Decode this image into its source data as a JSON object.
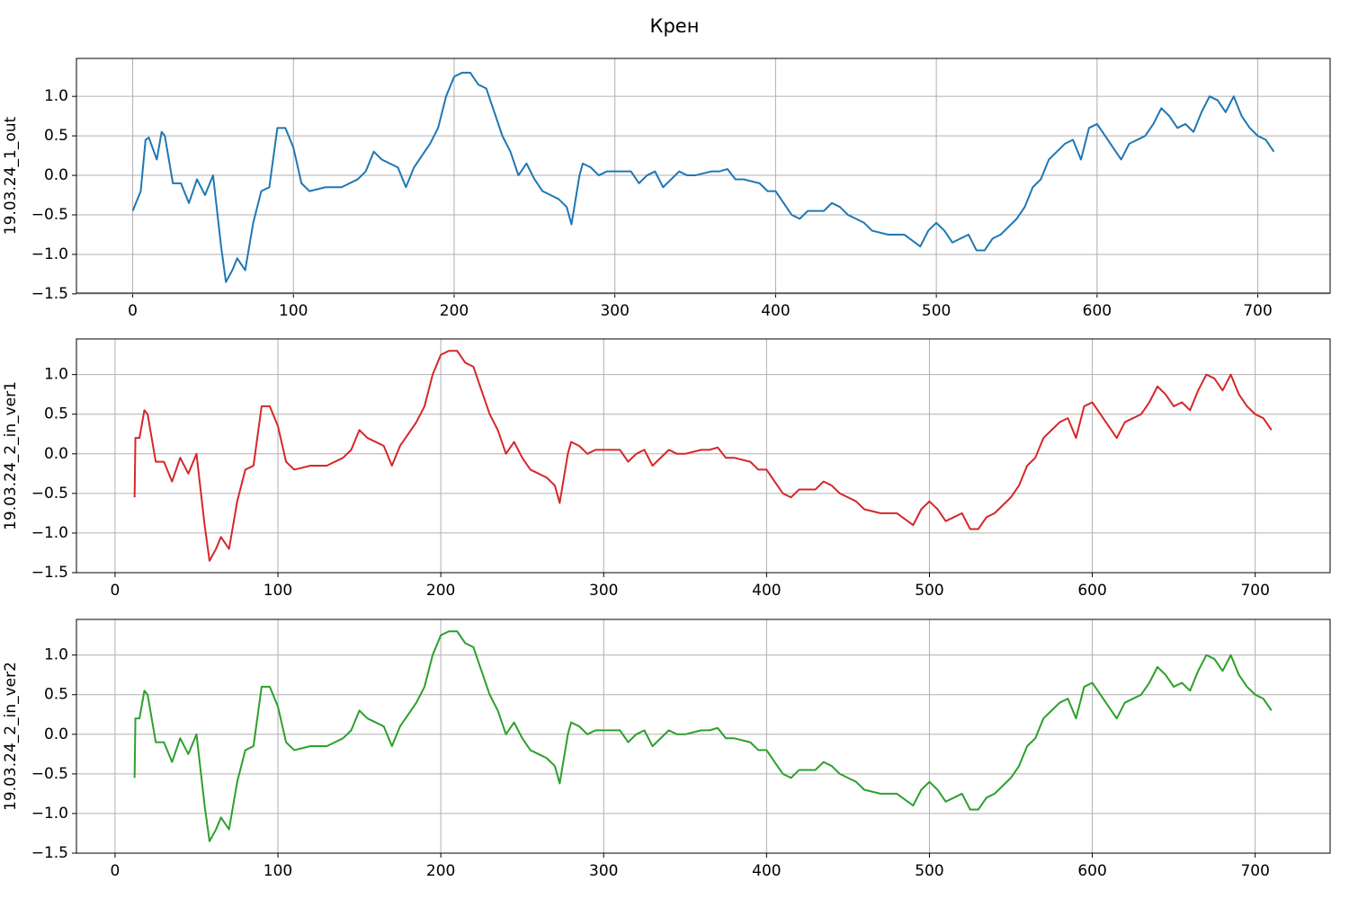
{
  "title": "Крен",
  "chart_data": [
    {
      "type": "line",
      "ylabel": "19.03.24_1_out",
      "color": "#1f77b4",
      "x": [
        0,
        5,
        8,
        10,
        15,
        18,
        20,
        25,
        30,
        35,
        40,
        45,
        50,
        55,
        58,
        62,
        65,
        70,
        75,
        80,
        85,
        90,
        95,
        100,
        105,
        110,
        120,
        130,
        140,
        145,
        150,
        155,
        160,
        165,
        170,
        175,
        180,
        185,
        190,
        195,
        200,
        205,
        210,
        215,
        220,
        225,
        230,
        235,
        240,
        245,
        250,
        255,
        260,
        265,
        270,
        273,
        278,
        280,
        285,
        290,
        295,
        300,
        310,
        315,
        320,
        325,
        330,
        340,
        345,
        350,
        360,
        365,
        370,
        375,
        380,
        390,
        395,
        400,
        405,
        410,
        415,
        420,
        430,
        435,
        440,
        445,
        450,
        455,
        460,
        470,
        480,
        490,
        495,
        500,
        505,
        510,
        515,
        520,
        525,
        530,
        535,
        540,
        550,
        555,
        560,
        565,
        570,
        575,
        580,
        585,
        590,
        595,
        600,
        605,
        610,
        615,
        620,
        630,
        635,
        640,
        645,
        650,
        655,
        660,
        665,
        670,
        675,
        680,
        685,
        690,
        695,
        700,
        705,
        710
      ],
      "values": [
        -0.45,
        -0.2,
        0.45,
        0.48,
        0.2,
        0.55,
        0.5,
        -0.1,
        -0.1,
        -0.35,
        -0.05,
        -0.25,
        0.0,
        -0.9,
        -1.35,
        -1.2,
        -1.05,
        -1.2,
        -0.6,
        -0.2,
        -0.15,
        0.6,
        0.6,
        0.35,
        -0.1,
        -0.2,
        -0.15,
        -0.15,
        -0.05,
        0.05,
        0.3,
        0.2,
        0.15,
        0.1,
        -0.15,
        0.1,
        0.25,
        0.4,
        0.6,
        1.0,
        1.25,
        1.3,
        1.3,
        1.15,
        1.1,
        0.8,
        0.5,
        0.3,
        0.0,
        0.15,
        -0.05,
        -0.2,
        -0.25,
        -0.3,
        -0.4,
        -0.62,
        0.0,
        0.15,
        0.1,
        0.0,
        0.05,
        0.05,
        0.05,
        -0.1,
        0.0,
        0.05,
        -0.15,
        0.05,
        0.0,
        0.0,
        0.05,
        0.05,
        0.08,
        -0.05,
        -0.05,
        -0.1,
        -0.2,
        -0.2,
        -0.35,
        -0.5,
        -0.55,
        -0.45,
        -0.45,
        -0.35,
        -0.4,
        -0.5,
        -0.55,
        -0.6,
        -0.7,
        -0.75,
        -0.75,
        -0.9,
        -0.7,
        -0.6,
        -0.7,
        -0.85,
        -0.8,
        -0.75,
        -0.95,
        -0.95,
        -0.8,
        -0.75,
        -0.55,
        -0.4,
        -0.15,
        -0.05,
        0.2,
        0.3,
        0.4,
        0.45,
        0.2,
        0.6,
        0.65,
        0.5,
        0.35,
        0.2,
        0.4,
        0.5,
        0.65,
        0.85,
        0.75,
        0.6,
        0.65,
        0.55,
        0.8,
        1.0,
        0.95,
        0.8,
        1.0,
        0.75,
        0.6,
        0.5,
        0.45,
        0.3
      ],
      "xlim": [
        -35,
        745
      ],
      "ylim": [
        -1.49,
        1.48
      ],
      "xticks": [
        0,
        100,
        200,
        300,
        400,
        500,
        600,
        700
      ],
      "yticks": [
        {
          "value": -1.5,
          "label": "−1.5"
        },
        {
          "value": -1.0,
          "label": "−1.0"
        },
        {
          "value": -0.5,
          "label": "−0.5"
        },
        {
          "value": 0,
          "label": "0.0"
        },
        {
          "value": 0.5,
          "label": "0.5"
        },
        {
          "value": 1.0,
          "label": "1.0"
        }
      ],
      "grid": true
    },
    {
      "type": "line",
      "ylabel": "19.03.24_2_in_ver1",
      "color": "#d62728",
      "x": [
        12,
        12.5,
        15,
        18,
        20,
        25,
        30,
        35,
        40,
        45,
        50,
        55,
        58,
        62,
        65,
        70,
        75,
        80,
        85,
        90,
        95,
        100,
        105,
        110,
        120,
        130,
        140,
        145,
        150,
        155,
        160,
        165,
        170,
        175,
        180,
        185,
        190,
        195,
        200,
        205,
        210,
        215,
        220,
        225,
        230,
        235,
        240,
        245,
        250,
        255,
        260,
        265,
        270,
        273,
        278,
        280,
        285,
        290,
        295,
        300,
        310,
        315,
        320,
        325,
        330,
        340,
        345,
        350,
        360,
        365,
        370,
        375,
        380,
        390,
        395,
        400,
        405,
        410,
        415,
        420,
        430,
        435,
        440,
        445,
        450,
        455,
        460,
        470,
        480,
        490,
        495,
        500,
        505,
        510,
        515,
        520,
        525,
        530,
        535,
        540,
        550,
        555,
        560,
        565,
        570,
        575,
        580,
        585,
        590,
        595,
        600,
        605,
        610,
        615,
        620,
        630,
        635,
        640,
        645,
        650,
        655,
        660,
        665,
        670,
        675,
        680,
        685,
        690,
        695,
        700,
        705,
        710
      ],
      "values": [
        -0.55,
        0.2,
        0.2,
        0.55,
        0.5,
        -0.1,
        -0.1,
        -0.35,
        -0.05,
        -0.25,
        0.0,
        -0.9,
        -1.35,
        -1.2,
        -1.05,
        -1.2,
        -0.6,
        -0.2,
        -0.15,
        0.6,
        0.6,
        0.35,
        -0.1,
        -0.2,
        -0.15,
        -0.15,
        -0.05,
        0.05,
        0.3,
        0.2,
        0.15,
        0.1,
        -0.15,
        0.1,
        0.25,
        0.4,
        0.6,
        1.0,
        1.25,
        1.3,
        1.3,
        1.15,
        1.1,
        0.8,
        0.5,
        0.3,
        0.0,
        0.15,
        -0.05,
        -0.2,
        -0.25,
        -0.3,
        -0.4,
        -0.62,
        0.0,
        0.15,
        0.1,
        0.0,
        0.05,
        0.05,
        0.05,
        -0.1,
        0.0,
        0.05,
        -0.15,
        0.05,
        0.0,
        0.0,
        0.05,
        0.05,
        0.08,
        -0.05,
        -0.05,
        -0.1,
        -0.2,
        -0.2,
        -0.35,
        -0.5,
        -0.55,
        -0.45,
        -0.45,
        -0.35,
        -0.4,
        -0.5,
        -0.55,
        -0.6,
        -0.7,
        -0.75,
        -0.75,
        -0.9,
        -0.7,
        -0.6,
        -0.7,
        -0.85,
        -0.8,
        -0.75,
        -0.95,
        -0.95,
        -0.8,
        -0.75,
        -0.55,
        -0.4,
        -0.15,
        -0.05,
        0.2,
        0.3,
        0.4,
        0.45,
        0.2,
        0.6,
        0.65,
        0.5,
        0.35,
        0.2,
        0.4,
        0.5,
        0.65,
        0.85,
        0.75,
        0.6,
        0.65,
        0.55,
        0.8,
        1.0,
        0.95,
        0.8,
        1.0,
        0.75,
        0.6,
        0.5,
        0.45,
        0.3
      ],
      "xlim": [
        -23.7,
        746
      ],
      "ylim": [
        -1.5,
        1.45
      ],
      "xticks": [
        0,
        100,
        200,
        300,
        400,
        500,
        600,
        700
      ],
      "yticks": [
        {
          "value": -1.5,
          "label": "−1.5"
        },
        {
          "value": -1.0,
          "label": "−1.0"
        },
        {
          "value": -0.5,
          "label": "−0.5"
        },
        {
          "value": 0,
          "label": "0.0"
        },
        {
          "value": 0.5,
          "label": "0.5"
        },
        {
          "value": 1.0,
          "label": "1.0"
        }
      ],
      "grid": true
    },
    {
      "type": "line",
      "ylabel": "19.03.24_2_in_ver2",
      "color": "#2ca02c",
      "x": [
        12,
        12.5,
        15,
        18,
        20,
        25,
        30,
        35,
        40,
        45,
        50,
        55,
        58,
        62,
        65,
        70,
        75,
        80,
        85,
        90,
        95,
        100,
        105,
        110,
        120,
        130,
        140,
        145,
        150,
        155,
        160,
        165,
        170,
        175,
        180,
        185,
        190,
        195,
        200,
        205,
        210,
        215,
        220,
        225,
        230,
        235,
        240,
        245,
        250,
        255,
        260,
        265,
        270,
        273,
        278,
        280,
        285,
        290,
        295,
        300,
        310,
        315,
        320,
        325,
        330,
        340,
        345,
        350,
        360,
        365,
        370,
        375,
        380,
        390,
        395,
        400,
        405,
        410,
        415,
        420,
        430,
        435,
        440,
        445,
        450,
        455,
        460,
        470,
        480,
        490,
        495,
        500,
        505,
        510,
        515,
        520,
        525,
        530,
        535,
        540,
        550,
        555,
        560,
        565,
        570,
        575,
        580,
        585,
        590,
        595,
        600,
        605,
        610,
        615,
        620,
        630,
        635,
        640,
        645,
        650,
        655,
        660,
        665,
        670,
        675,
        680,
        685,
        690,
        695,
        700,
        705,
        710
      ],
      "values": [
        -0.55,
        0.2,
        0.2,
        0.55,
        0.5,
        -0.1,
        -0.1,
        -0.35,
        -0.05,
        -0.25,
        0.0,
        -0.9,
        -1.35,
        -1.2,
        -1.05,
        -1.2,
        -0.6,
        -0.2,
        -0.15,
        0.6,
        0.6,
        0.35,
        -0.1,
        -0.2,
        -0.15,
        -0.15,
        -0.05,
        0.05,
        0.3,
        0.2,
        0.15,
        0.1,
        -0.15,
        0.1,
        0.25,
        0.4,
        0.6,
        1.0,
        1.25,
        1.3,
        1.3,
        1.15,
        1.1,
        0.8,
        0.5,
        0.3,
        0.0,
        0.15,
        -0.05,
        -0.2,
        -0.25,
        -0.3,
        -0.4,
        -0.62,
        0.0,
        0.15,
        0.1,
        0.0,
        0.05,
        0.05,
        0.05,
        -0.1,
        0.0,
        0.05,
        -0.15,
        0.05,
        0.0,
        0.0,
        0.05,
        0.05,
        0.08,
        -0.05,
        -0.05,
        -0.1,
        -0.2,
        -0.2,
        -0.35,
        -0.5,
        -0.55,
        -0.45,
        -0.45,
        -0.35,
        -0.4,
        -0.5,
        -0.55,
        -0.6,
        -0.7,
        -0.75,
        -0.75,
        -0.9,
        -0.7,
        -0.6,
        -0.7,
        -0.85,
        -0.8,
        -0.75,
        -0.95,
        -0.95,
        -0.8,
        -0.75,
        -0.55,
        -0.4,
        -0.15,
        -0.05,
        0.2,
        0.3,
        0.4,
        0.45,
        0.2,
        0.6,
        0.65,
        0.5,
        0.35,
        0.2,
        0.4,
        0.5,
        0.65,
        0.85,
        0.75,
        0.6,
        0.65,
        0.55,
        0.8,
        1.0,
        0.95,
        0.8,
        1.0,
        0.75,
        0.6,
        0.5,
        0.45,
        0.3
      ],
      "xlim": [
        -23.7,
        746
      ],
      "ylim": [
        -1.5,
        1.45
      ],
      "xticks": [
        0,
        100,
        200,
        300,
        400,
        500,
        600,
        700
      ],
      "yticks": [
        {
          "value": -1.5,
          "label": "−1.5"
        },
        {
          "value": -1.0,
          "label": "−1.0"
        },
        {
          "value": -0.5,
          "label": "−0.5"
        },
        {
          "value": 0,
          "label": "0.0"
        },
        {
          "value": 0.5,
          "label": "0.5"
        },
        {
          "value": 1.0,
          "label": "1.0"
        }
      ],
      "grid": true
    }
  ]
}
